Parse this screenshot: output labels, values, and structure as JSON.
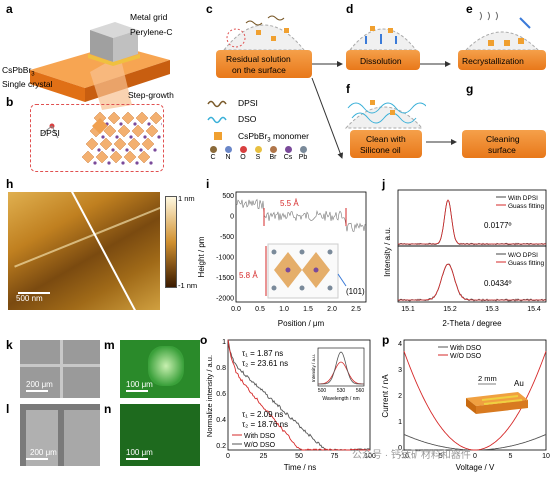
{
  "panels": {
    "a": {
      "letter": "a",
      "metal_grid": "Metal grid",
      "perylene": "Perylene-C",
      "crystal_line1": "CsPbBr",
      "crystal_sub": "3",
      "crystal_line2": "Single crystal",
      "step": "Step-growth"
    },
    "b": {
      "letter": "b",
      "dpsi": "DPSI"
    },
    "c": {
      "letter": "c",
      "residual_line1": "Residual solution",
      "residual_line2": "on the surface"
    },
    "d": {
      "letter": "d",
      "label": "Dissolution"
    },
    "e": {
      "letter": "e",
      "label": "Recrystallization"
    },
    "f": {
      "letter": "f",
      "line1": "Clean with",
      "line2": "Silicone oil"
    },
    "g": {
      "letter": "g",
      "line1": "Cleaning",
      "line2": "surface"
    },
    "legend": {
      "dpsi": "DPSI",
      "dso": "DSO",
      "monomer_pre": "CsPbBr",
      "monomer_sub": "3",
      "monomer_post": " monomer",
      "elements": [
        "C",
        "N",
        "O",
        "S",
        "Br",
        "Cs",
        "Pb"
      ],
      "element_colors": [
        "#8a6a3a",
        "#6a86c8",
        "#d84040",
        "#e8c040",
        "#b0764a",
        "#7a4a9a",
        "#7a8a9a"
      ]
    },
    "h": {
      "letter": "h",
      "scale_top": "1 nm",
      "scale_bottom": "-1 nm",
      "bar": "500 nm"
    },
    "i": {
      "letter": "i",
      "ylabel": "Height / pm",
      "xlabel": "Position / μm",
      "step1": "5.5 Å",
      "step2": "5.8 Å",
      "plane": "(101)",
      "yticks": [
        "500",
        "0",
        "-500",
        "-1000",
        "-1500",
        "-2000"
      ],
      "xticks": [
        "0.0",
        "0.5",
        "1.0",
        "1.5",
        "2.0",
        "2.5"
      ]
    },
    "j": {
      "letter": "j",
      "ylabel": "Intensity / a.u.",
      "xlabel": "2-Theta / degree",
      "top_legend": [
        "With DPSI",
        "Guass fitting"
      ],
      "top_fwhm": "0.0177º",
      "bot_legend": [
        "W/O DPSI",
        "Guass fitting"
      ],
      "bot_fwhm": "0.0434º",
      "xticks": [
        "15.1",
        "15.2",
        "15.3",
        "15.4"
      ]
    },
    "k": {
      "letter": "k",
      "bar": "200 μm"
    },
    "l": {
      "letter": "l",
      "bar": "200 μm"
    },
    "m": {
      "letter": "m",
      "bar": "100 μm"
    },
    "n": {
      "letter": "n",
      "bar": "100 μm"
    },
    "o": {
      "letter": "o",
      "ylabel": "Normalize intensity / a.u.",
      "xlabel": "Time / ns",
      "tau1_top": "τ₁ = 1.87 ns",
      "tau2_top": "τ₂ = 23.61 ns",
      "tau1_bot": "τ₁ = 2.09 ns",
      "tau2_bot": "τ₂ = 18.76 ns",
      "legend": [
        "With DSO",
        "W/O DSO"
      ],
      "yticks": [
        "1",
        "0.8",
        "0.6",
        "0.4",
        "0.2"
      ],
      "xticks": [
        "0",
        "25",
        "50",
        "75",
        "100"
      ],
      "inset": {
        "ylabel": "Intensity / a.u.",
        "xlabel": "Wavelength / nm",
        "xticks": [
          "500",
          "530",
          "560"
        ]
      }
    },
    "p": {
      "letter": "p",
      "ylabel": "Current / nA",
      "xlabel": "Voltage / V",
      "legend": [
        "With DSO",
        "W/O DSO"
      ],
      "yticks": [
        "4",
        "3",
        "2",
        "1",
        "0"
      ],
      "xticks": [
        "-10",
        "-5",
        "0",
        "5",
        "10"
      ],
      "gap": "2 mm",
      "electrode": "Au"
    }
  },
  "watermark": "公众号 · 钙钛矿材料和器件",
  "colors": {
    "orange": "#ef8a2e",
    "red": "#d62a2a",
    "gray": "#888888",
    "blue": "#3aa0d8"
  }
}
